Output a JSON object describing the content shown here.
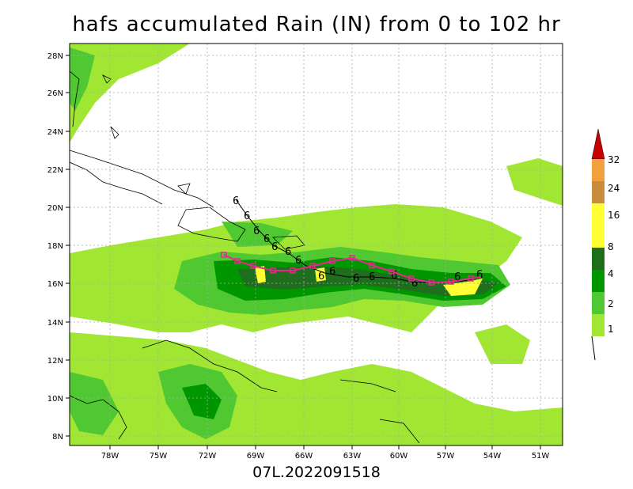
{
  "title": "hafs accumulated Rain (IN) from 0 to 102 hr",
  "footer": "07L.2022091518",
  "lon_labels": [
    "78W",
    "75W",
    "72W",
    "69W",
    "66W",
    "63W",
    "60W",
    "57W",
    "54W",
    "51W"
  ],
  "lat_labels": [
    "28N",
    "26N",
    "24N",
    "22N",
    "20N",
    "18N",
    "16N",
    "14N",
    "12N",
    "10N",
    "8N"
  ],
  "colorbar": {
    "levels": [
      "1",
      "2",
      "4",
      "8",
      "16",
      "24",
      "32"
    ],
    "colors": [
      "#a0e632",
      "#50c832",
      "#009600",
      "#1e6e1e",
      "#ffff33",
      "#c88c3c",
      "#f0a03c",
      "#c80000"
    ]
  },
  "colors": {
    "rain_1": "#a0e632",
    "rain_2": "#50c832",
    "rain_4": "#009600",
    "rain_8": "#1e6e1e",
    "rain_16": "#ffff33",
    "track_hafs": "#e6288c",
    "track_obs": "#000000",
    "coast": "#000000",
    "grid": "#aaaaaa"
  },
  "track_symbol": "6"
}
